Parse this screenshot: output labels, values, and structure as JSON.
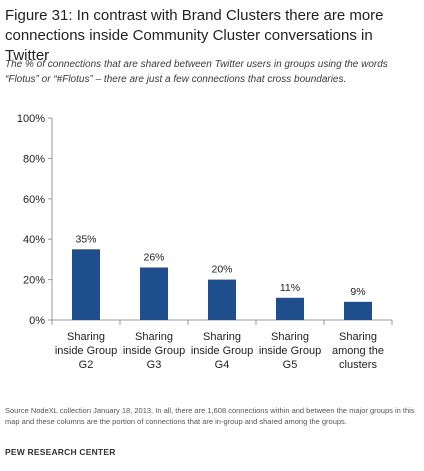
{
  "header": {
    "title": "Figure 31: In contrast with Brand Clusters there are more connections inside Community Cluster conversations in Twitter",
    "subtitle": "The % of connections that are shared between Twitter users in groups using the words “Flotus” or “#Flotus” – there are just a few connections that cross boundaries."
  },
  "footer": {
    "source": "Source NodeXL collection January 18, 2013. In all, there are 1,608 connections within and between the major groups in this map and these columns are the portion of connections that are in-group and shared among the groups.",
    "org": "PEW RESEARCH CENTER"
  },
  "chart_data": {
    "type": "bar",
    "categories": [
      [
        "Sharing",
        "inside Group",
        "G2"
      ],
      [
        "Sharing",
        "inside Group",
        "G3"
      ],
      [
        "Sharing",
        "inside Group",
        "G4"
      ],
      [
        "Sharing",
        "inside Group",
        "G5"
      ],
      [
        "Sharing",
        "among the",
        "clusters"
      ]
    ],
    "values": [
      35,
      26,
      20,
      11,
      9
    ],
    "data_labels": [
      "35%",
      "26%",
      "20%",
      "11%",
      "9%"
    ],
    "ylim": [
      0,
      100
    ],
    "yticks": [
      0,
      20,
      40,
      60,
      80,
      100
    ],
    "ytick_labels": [
      "0%",
      "20%",
      "40%",
      "60%",
      "80%",
      "100%"
    ],
    "xlabel": "",
    "ylabel": "",
    "grid": false,
    "bar_color": "#1f4e8c",
    "axis_color": "#9a9a9a"
  }
}
